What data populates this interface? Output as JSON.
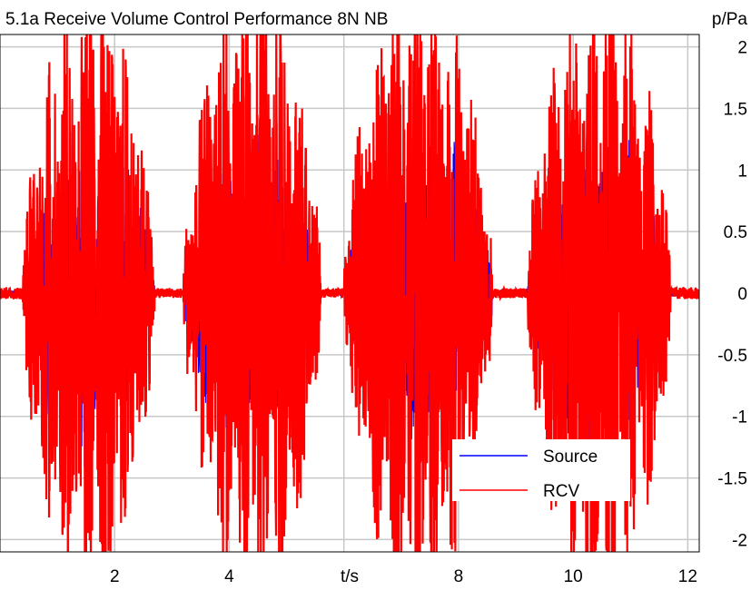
{
  "chart_data": {
    "type": "line",
    "title": "5.1a Receive Volume Control Performance 8N NB",
    "xlabel": "t/s",
    "ylabel": "p/Pa",
    "xlim": [
      0.0,
      12.2
    ],
    "ylim": [
      -2.1,
      2.1
    ],
    "x_ticks": [
      2,
      4,
      8,
      10,
      12
    ],
    "x_tick_labels": [
      "2",
      "4",
      "8",
      "10",
      "12"
    ],
    "y_ticks": [
      2,
      1.5,
      1,
      0.5,
      0,
      -0.5,
      -1,
      -1.5,
      -2
    ],
    "y_tick_labels": [
      "2",
      "1.5",
      "1",
      "0.5",
      "0",
      "-0.5",
      "-1",
      "-1.5",
      "-2"
    ],
    "grid": true,
    "legend": {
      "position": "bottom-right",
      "entries": [
        "Source",
        "RCV"
      ]
    },
    "series": [
      {
        "name": "Source",
        "color": "#0000ff",
        "note_visible": "mostly hidden beneath RCV"
      },
      {
        "name": "RCV",
        "color": "#ff0000"
      }
    ],
    "segments": [
      {
        "start": 0.0,
        "end": 0.4,
        "amplitude": 0.05
      },
      {
        "start": 0.4,
        "end": 2.7,
        "amplitude": 2.1
      },
      {
        "start": 2.7,
        "end": 3.2,
        "amplitude": 0.04
      },
      {
        "start": 3.2,
        "end": 5.6,
        "amplitude": 2.1
      },
      {
        "start": 5.6,
        "end": 6.0,
        "amplitude": 0.04
      },
      {
        "start": 6.0,
        "end": 8.6,
        "amplitude": 2.1
      },
      {
        "start": 8.6,
        "end": 9.2,
        "amplitude": 0.04
      },
      {
        "start": 9.2,
        "end": 11.7,
        "amplitude": 2.1
      },
      {
        "start": 11.7,
        "end": 12.2,
        "amplitude": 0.05
      }
    ]
  }
}
